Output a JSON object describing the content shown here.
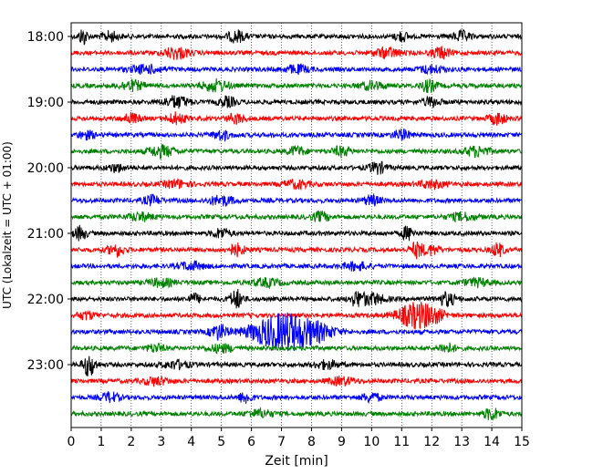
{
  "chart_data": {
    "type": "line",
    "description_type": "helicorder seismogram",
    "xlabel": "Zeit  [min]",
    "ylabel": "UTC (Lokalzeit = UTC + 01:00)",
    "xlim": [
      0,
      15
    ],
    "x_ticks": [
      "0",
      "1",
      "2",
      "3",
      "4",
      "5",
      "6",
      "7",
      "8",
      "9",
      "10",
      "11",
      "12",
      "13",
      "14",
      "15"
    ],
    "y_ticks": [
      "18:00",
      "19:00",
      "20:00",
      "21:00",
      "22:00",
      "23:00"
    ],
    "grid": "vertical dotted at each minute",
    "trace_interval_minutes": 15,
    "trace_color_cycle": [
      "#000000",
      "#ff0000",
      "#0000ff",
      "#008000"
    ],
    "traces": [
      {
        "start": "18:00",
        "color": "#000000"
      },
      {
        "start": "18:15",
        "color": "#ff0000"
      },
      {
        "start": "18:30",
        "color": "#0000ff"
      },
      {
        "start": "18:45",
        "color": "#008000"
      },
      {
        "start": "19:00",
        "color": "#000000"
      },
      {
        "start": "19:15",
        "color": "#ff0000"
      },
      {
        "start": "19:30",
        "color": "#0000ff"
      },
      {
        "start": "19:45",
        "color": "#008000"
      },
      {
        "start": "20:00",
        "color": "#000000"
      },
      {
        "start": "20:15",
        "color": "#ff0000"
      },
      {
        "start": "20:30",
        "color": "#0000ff"
      },
      {
        "start": "20:45",
        "color": "#008000"
      },
      {
        "start": "21:00",
        "color": "#000000"
      },
      {
        "start": "21:15",
        "color": "#ff0000"
      },
      {
        "start": "21:30",
        "color": "#0000ff"
      },
      {
        "start": "21:45",
        "color": "#008000"
      },
      {
        "start": "22:00",
        "color": "#000000"
      },
      {
        "start": "22:15",
        "color": "#ff0000"
      },
      {
        "start": "22:30",
        "color": "#0000ff"
      },
      {
        "start": "22:45",
        "color": "#008000"
      },
      {
        "start": "23:00",
        "color": "#000000"
      },
      {
        "start": "23:15",
        "color": "#ff0000"
      },
      {
        "start": "23:30",
        "color": "#0000ff"
      },
      {
        "start": "23:45",
        "color": "#008000"
      }
    ]
  }
}
